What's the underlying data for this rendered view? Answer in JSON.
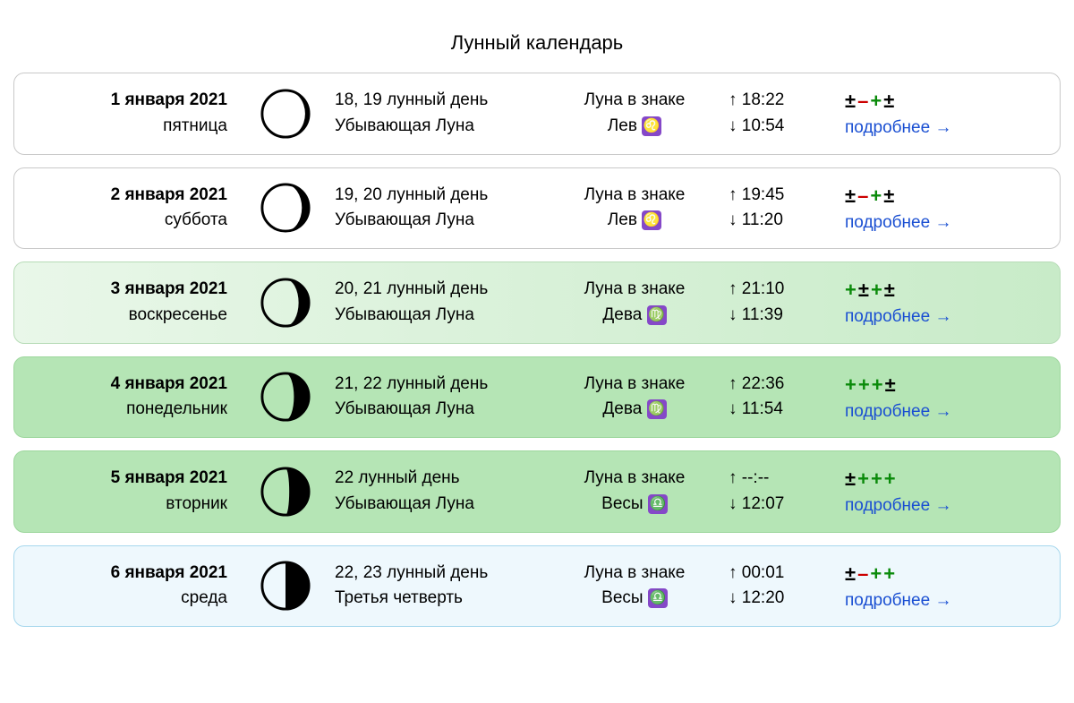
{
  "title": "Лунный календарь",
  "styling": {
    "card_border_radius": 12,
    "colors": {
      "white_bg": "#ffffff",
      "lgreen_bg_from": "#e9f7e9",
      "lgreen_bg_to": "#c8ebc8",
      "green_bg": "#b5e5b5",
      "blue_bg": "#eef8fd",
      "blue_border": "#a6d7ed",
      "link": "#1a4fd2",
      "plus": "#0a8a0a",
      "minus": "#cc0000",
      "pm": "#000000"
    },
    "moon_phases": {
      "waning_gibbous_1": {
        "shadow_pct": 8
      },
      "waning_gibbous_2": {
        "shadow_pct": 15
      },
      "waning_gibbous_3": {
        "shadow_pct": 22
      },
      "waning_gibbous_4": {
        "shadow_pct": 32
      },
      "waning_gibbous_5": {
        "shadow_pct": 42
      },
      "last_quarter": {
        "shadow_pct": 50
      }
    }
  },
  "labels": {
    "zodiac_in": "Луна в знаке",
    "more": "подробнее",
    "rise_arrow": "↑",
    "set_arrow": "↓",
    "link_arrow": "→"
  },
  "days": [
    {
      "date": "1 января 2021",
      "weekday": "пятница",
      "bg": "white",
      "moon_phase": "waning_gibbous_1",
      "lunar_day": "18, 19 лунный день",
      "phase_name": "Убывающая Луна",
      "zodiac": "Лев",
      "zodiac_emoji": "♌",
      "rise": "18:22",
      "set": "10:54",
      "rating": [
        "pm",
        "minus",
        "plus",
        "pm"
      ]
    },
    {
      "date": "2 января 2021",
      "weekday": "суббота",
      "bg": "white",
      "moon_phase": "waning_gibbous_2",
      "lunar_day": "19, 20 лунный день",
      "phase_name": "Убывающая Луна",
      "zodiac": "Лев",
      "zodiac_emoji": "♌",
      "rise": "19:45",
      "set": "11:20",
      "rating": [
        "pm",
        "minus",
        "plus",
        "pm"
      ]
    },
    {
      "date": "3 января 2021",
      "weekday": "воскресенье",
      "bg": "lgreen",
      "moon_phase": "waning_gibbous_3",
      "lunar_day": "20, 21 лунный день",
      "phase_name": "Убывающая Луна",
      "zodiac": "Дева",
      "zodiac_emoji": "♍",
      "rise": "21:10",
      "set": "11:39",
      "rating": [
        "plus",
        "pm",
        "plus",
        "pm"
      ]
    },
    {
      "date": "4 января 2021",
      "weekday": "понедельник",
      "bg": "green",
      "moon_phase": "waning_gibbous_4",
      "lunar_day": "21, 22 лунный день",
      "phase_name": "Убывающая Луна",
      "zodiac": "Дева",
      "zodiac_emoji": "♍",
      "rise": "22:36",
      "set": "11:54",
      "rating": [
        "plus",
        "plus",
        "plus",
        "pm"
      ]
    },
    {
      "date": "5 января 2021",
      "weekday": "вторник",
      "bg": "green",
      "moon_phase": "waning_gibbous_5",
      "lunar_day": "22 лунный день",
      "phase_name": "Убывающая Луна",
      "zodiac": "Весы",
      "zodiac_emoji": "♎",
      "rise": "--:--",
      "set": "12:07",
      "rating": [
        "pm",
        "plus",
        "plus",
        "plus"
      ]
    },
    {
      "date": "6 января 2021",
      "weekday": "среда",
      "bg": "blue",
      "moon_phase": "last_quarter",
      "lunar_day": "22, 23 лунный день",
      "phase_name": "Третья четверть",
      "zodiac": "Весы",
      "zodiac_emoji": "♎",
      "rise": "00:01",
      "set": "12:20",
      "rating": [
        "pm",
        "minus",
        "plus",
        "plus"
      ]
    }
  ]
}
